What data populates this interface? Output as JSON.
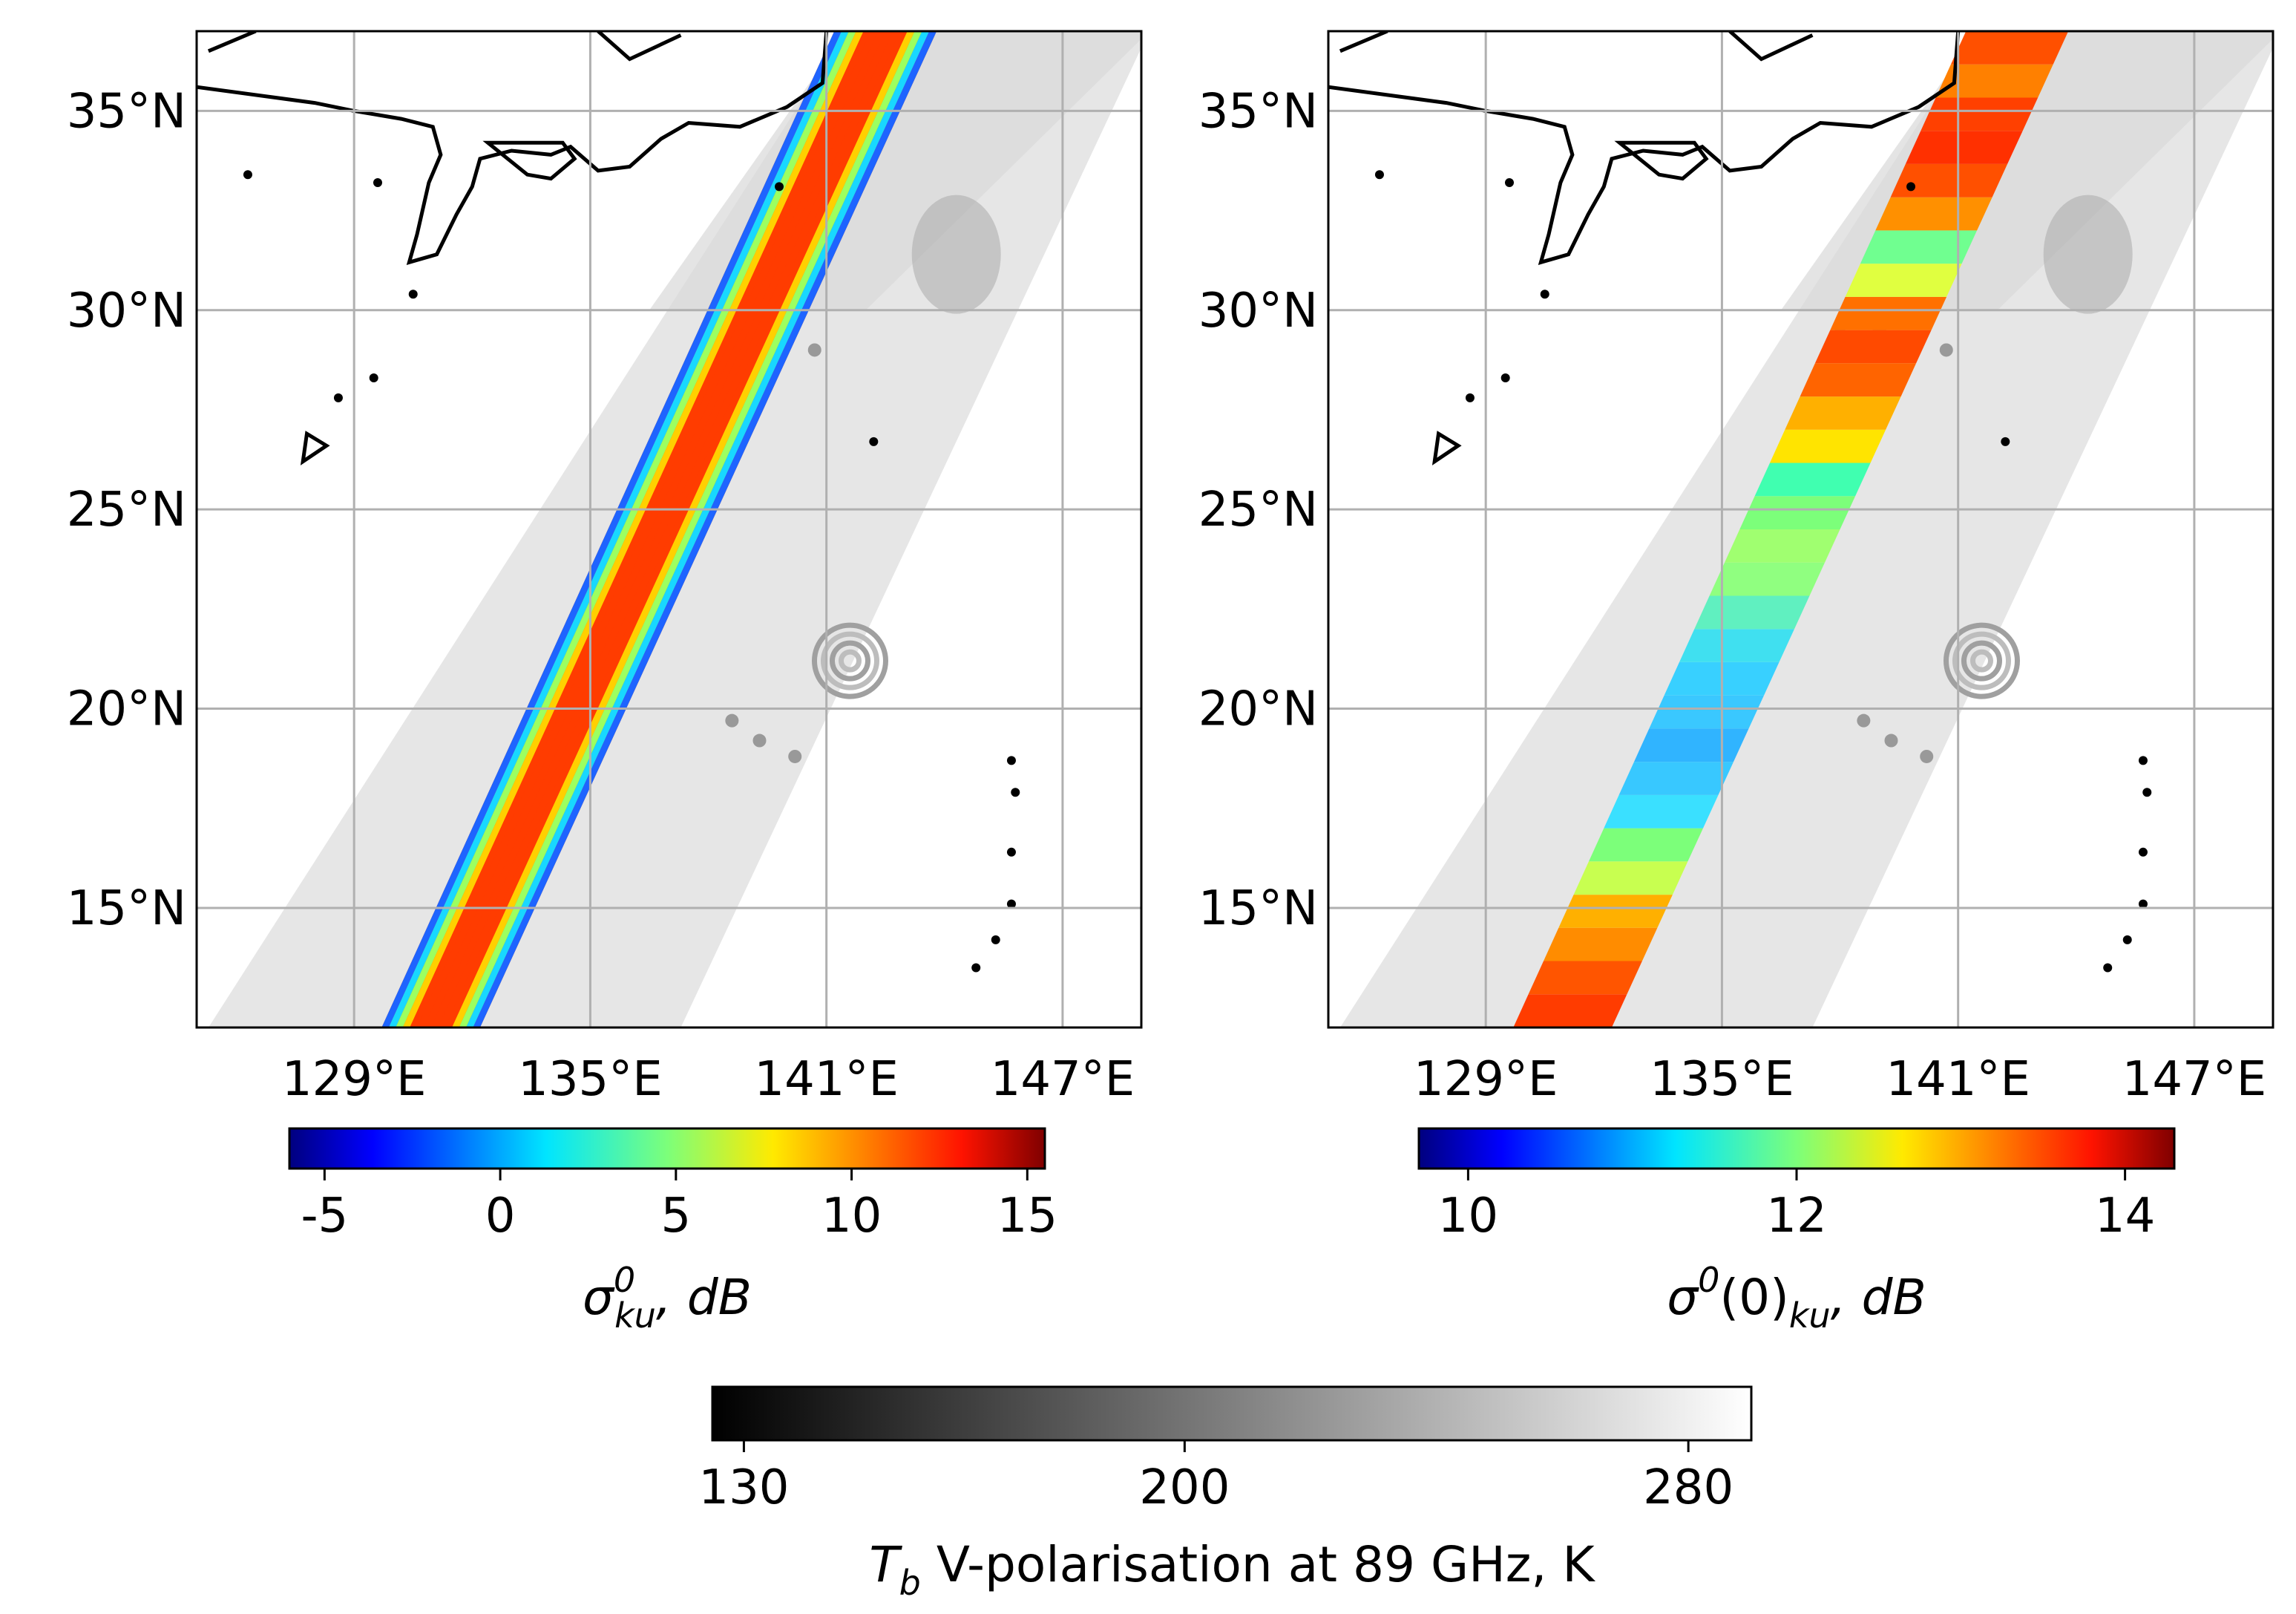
{
  "chart_data": [
    {
      "type": "heatmap",
      "panel": "left",
      "variable": "sigma0_ku",
      "colormap": "jet",
      "xlim": [
        125,
        149
      ],
      "ylim": [
        12,
        37
      ],
      "xticks": [
        129,
        135,
        141,
        147
      ],
      "yticks": [
        15,
        20,
        25,
        30,
        35
      ],
      "xtick_labels": [
        "129°E",
        "135°E",
        "141°E",
        "147°E"
      ],
      "ytick_labels": [
        "15°N",
        "20°N",
        "25°N",
        "30°N",
        "35°N"
      ],
      "grid": true,
      "colorbar": {
        "vmin": -6,
        "vmax": 15.5,
        "ticks": [
          -5,
          0,
          5,
          10,
          15
        ],
        "tick_labels": [
          "-5",
          "0",
          "5",
          "10",
          "15"
        ],
        "label_main": "σ",
        "label_sup": "0",
        "label_sub": "ku",
        "label_rest": ", dB"
      }
    },
    {
      "type": "heatmap",
      "panel": "right",
      "variable": "sigma0(0)_ku",
      "colormap": "jet",
      "xlim": [
        125,
        149
      ],
      "ylim": [
        12,
        37
      ],
      "xticks": [
        129,
        135,
        141,
        147
      ],
      "yticks": [
        15,
        20,
        25,
        30,
        35
      ],
      "xtick_labels": [
        "129°E",
        "135°E",
        "141°E",
        "147°E"
      ],
      "ytick_labels": [
        "15°N",
        "20°N",
        "25°N",
        "30°N",
        "35°N"
      ],
      "grid": true,
      "colorbar": {
        "vmin": 9.7,
        "vmax": 14.3,
        "ticks": [
          10,
          12,
          14
        ],
        "tick_labels": [
          "10",
          "12",
          "14"
        ],
        "label_main": "σ",
        "label_sup": "0",
        "label_mid": "(0)",
        "label_sub": "ku",
        "label_rest": ", dB"
      }
    },
    {
      "type": "colorbar",
      "panel": "shared",
      "variable": "Tb",
      "colormap": "gray",
      "vmin": 125,
      "vmax": 290,
      "ticks": [
        130,
        200,
        280
      ],
      "tick_labels": [
        "130",
        "200",
        "280"
      ],
      "label_main": "T",
      "label_sub": "b",
      "label_rest": " V-polarisation at 89 GHz, K"
    }
  ]
}
